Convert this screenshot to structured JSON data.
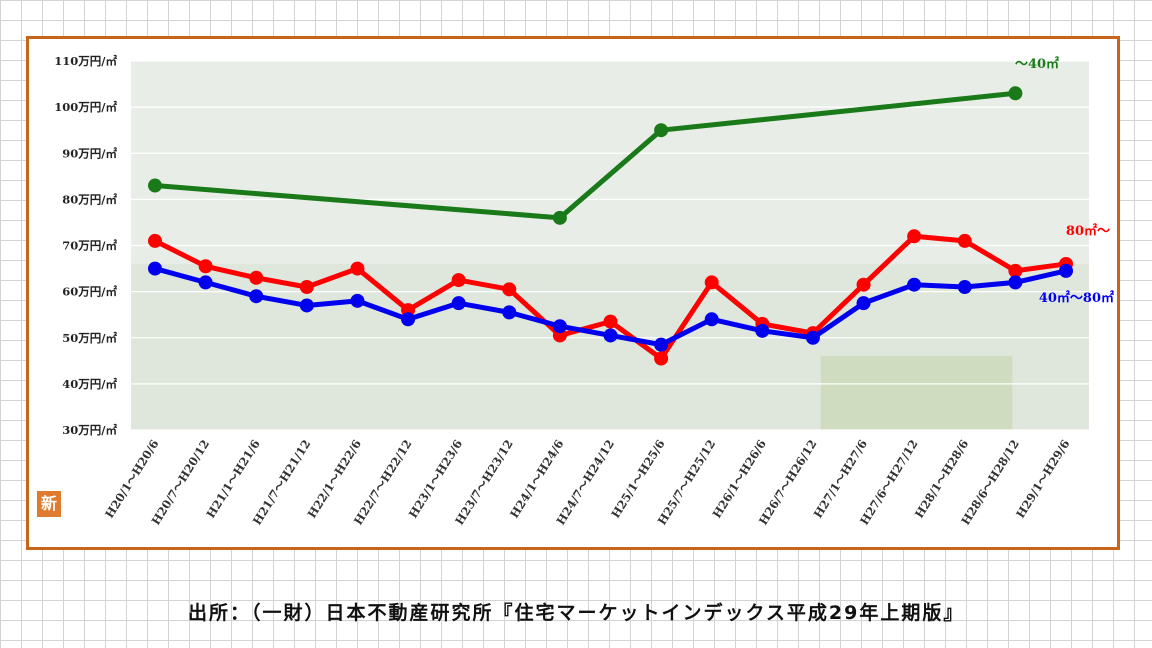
{
  "chart_data": {
    "type": "line",
    "categories": [
      "H20/1～H20/6",
      "H20/7～H20/12",
      "H21/1～H21/6",
      "H21/7～H21/12",
      "H22/1～H22/6",
      "H22/7～H22/12",
      "H23/1～H23/6",
      "H23/7～H23/12",
      "H24/1～H24/6",
      "H24/7～H24/12",
      "H25/1～H25/6",
      "H25/7～H25/12",
      "H26/1～H26/6",
      "H26/7～H26/12",
      "H27/1～H27/6",
      "H27/6～H27/12",
      "H28/1～H28/6",
      "H28/6～H28/12",
      "H29/1～H29/6"
    ],
    "y_ticks": [
      "30万円/㎡",
      "40万円/㎡",
      "50万円/㎡",
      "60万円/㎡",
      "70万円/㎡",
      "80万円/㎡",
      "90万円/㎡",
      "100万円/㎡",
      "110万円/㎡"
    ],
    "ylim": [
      30,
      110
    ],
    "grid": true,
    "series": [
      {
        "name": "～40㎡",
        "color": "#1a7a1a",
        "values": [
          83,
          null,
          null,
          null,
          null,
          null,
          null,
          null,
          76,
          null,
          95,
          null,
          null,
          null,
          null,
          null,
          null,
          103,
          null
        ]
      },
      {
        "name": "80㎡～",
        "color": "#ff0000",
        "values": [
          71,
          65.5,
          63,
          61,
          65,
          56,
          62.5,
          60.5,
          50.5,
          53.5,
          45.5,
          62,
          53,
          51,
          61.5,
          72,
          71,
          64.5,
          66
        ]
      },
      {
        "name": "40㎡～80㎡",
        "color": "#0000ee",
        "values": [
          65,
          62,
          59,
          57,
          58,
          54,
          57.5,
          55.5,
          52.5,
          50.5,
          48.5,
          54,
          51.5,
          50,
          57.5,
          61.5,
          61,
          62,
          64.5
        ]
      }
    ]
  },
  "badge": "新",
  "source": "出所：（一財）日本不動産研究所『住宅マーケットインデックス平成29年上期版』"
}
